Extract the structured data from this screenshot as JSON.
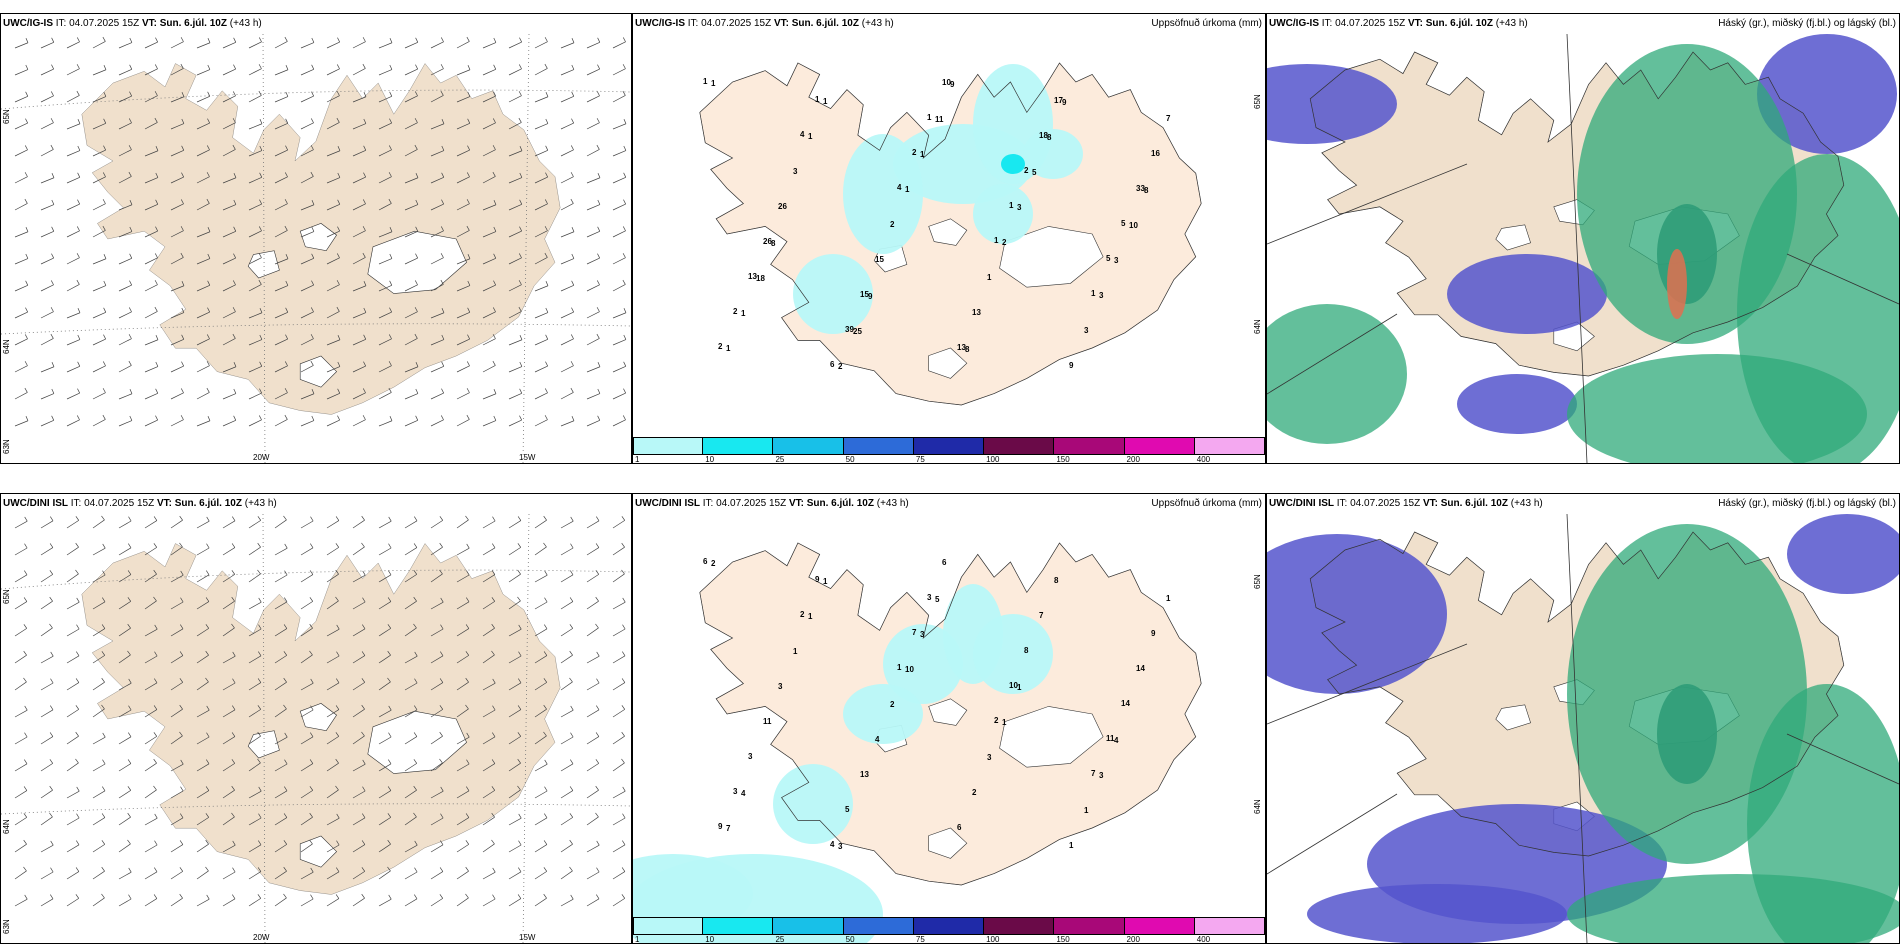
{
  "rows": [
    {
      "wind": {
        "title_model": "UWC/IG-IS",
        "title_it": " IT: 04.07.2025 15Z ",
        "title_vt": "VT: Sun. 6.júl. 10Z",
        "title_lead": " (+43 h)",
        "lon_labels": [
          "20W",
          "15W"
        ],
        "lat_labels": [
          "65N",
          "64N",
          "63N"
        ]
      },
      "precip": {
        "title_model": "UWC/IG-IS",
        "title_it": " IT: 04.07.2025 15Z ",
        "title_vt": "VT: Sun. 6.júl. 10Z",
        "title_lead": " (+43 h)",
        "title_right": "Uppsöfnuð úrkoma (mm)",
        "lat_labels": [
          "65N",
          "64N"
        ],
        "numbers": [
          "1",
          "4",
          "4",
          "1",
          "1",
          "2",
          "1",
          "2",
          "1",
          "5",
          "2",
          "6",
          "1",
          "2",
          "5",
          "13",
          "39",
          "10",
          "18",
          "33",
          "26",
          "15",
          "13",
          "17",
          "16",
          "26",
          "15",
          "13",
          "9",
          "7",
          "3",
          "2",
          "1",
          "3",
          "1",
          "1",
          "1",
          "2",
          "3",
          "1",
          "1",
          "1",
          "3",
          "3",
          "1",
          "2",
          "11",
          "5",
          "10",
          "18",
          "25",
          "9",
          "8",
          "8",
          "8",
          "9",
          "8",
          "9"
        ]
      },
      "cloud": {
        "title_model": "UWC/IG-IS",
        "title_it": " IT: 04.07.2025 15Z ",
        "title_vt": "VT: Sun. 6.júl. 10Z",
        "title_lead": " (+43 h)",
        "title_right": "Háský (gr.), miðský (fj.bl.) og lágský (bl.)"
      }
    },
    {
      "wind": {
        "title_model": "UWC/DINI ISL",
        "title_it": " IT: 04.07.2025 15Z ",
        "title_vt": "VT: Sun. 6.júl. 10Z",
        "title_lead": " (+43 h)",
        "lon_labels": [
          "20W",
          "15W"
        ],
        "lat_labels": [
          "65N",
          "64N",
          "63N"
        ]
      },
      "precip": {
        "title_model": "UWC/DINI ISL",
        "title_it": " IT: 04.07.2025 15Z ",
        "title_vt": "VT: Sun. 6.júl. 10Z",
        "title_lead": " (+43 h)",
        "title_right": "Uppsöfnuð úrkoma (mm)",
        "lat_labels": [
          "65N",
          "64N"
        ],
        "numbers": [
          "6",
          "2",
          "1",
          "2",
          "7",
          "9",
          "9",
          "7",
          "10",
          "11",
          "3",
          "4",
          "3",
          "8",
          "14",
          "3",
          "5",
          "6",
          "7",
          "14",
          "11",
          "13",
          "6",
          "8",
          "9",
          "3",
          "4",
          "2",
          "1",
          "1",
          "1",
          "2",
          "3",
          "1",
          "2",
          "1",
          "10",
          "1",
          "3",
          "7",
          "1",
          "3",
          "1",
          "4",
          "4",
          "3",
          "5"
        ]
      },
      "cloud": {
        "title_model": "UWC/DINI ISL",
        "title_it": " IT: 04.07.2025 15Z ",
        "title_vt": "VT: Sun. 6.júl. 10Z",
        "title_lead": " (+43 h)",
        "title_right": "Háský (gr.), miðský (fj.bl.) og lágský (bl.)"
      }
    }
  ],
  "legend": {
    "ticks": [
      "1",
      "10",
      "25",
      "50",
      "75",
      "100",
      "150",
      "200",
      "400"
    ],
    "colors": [
      "#b8f8f8",
      "#18e8f0",
      "#18c0e8",
      "#2d6bd8",
      "#1f2aa8",
      "#6a0a48",
      "#a80878",
      "#e00ab0",
      "#f4a8f0"
    ]
  },
  "colors": {
    "land": "#f0e0cc",
    "land_precip": "#fcebdc",
    "coast": "#333333",
    "cloud_high": "#2f9c78",
    "cloud_mid": "#2faa7a",
    "cloud_low": "#5555cc"
  }
}
